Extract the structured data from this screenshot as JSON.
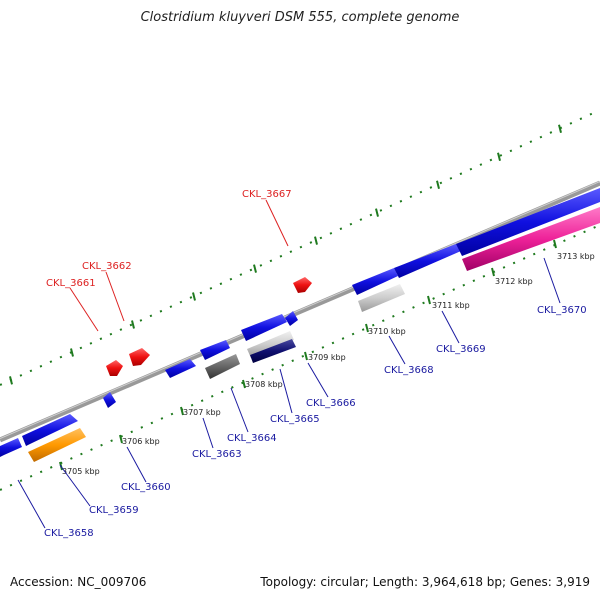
{
  "header": {
    "title": "Clostridium kluyveri DSM 555, complete genome"
  },
  "footer": {
    "accession": "Accession: NC_009706",
    "summary": "Topology: circular; Length: 3,964,618 bp; Genes: 3,919"
  },
  "colors": {
    "backbone": "#8a8a8a",
    "tick": "#1f7a1f",
    "forward_gene": "#1010e0",
    "reverse_gene": "#ee1111",
    "label_forward": "#1a1aa0",
    "label_reverse": "#dd2222"
  },
  "ticks": [
    {
      "label": "3705 kbp"
    },
    {
      "label": "3706 kbp"
    },
    {
      "label": "3707 kbp"
    },
    {
      "label": "3708 kbp"
    },
    {
      "label": "3709 kbp"
    },
    {
      "label": "3710 kbp"
    },
    {
      "label": "3711 kbp"
    },
    {
      "label": "3712 kbp"
    },
    {
      "label": "3713 kbp"
    }
  ],
  "gene_labels": [
    {
      "text": "CKL_3658",
      "strand": "forward"
    },
    {
      "text": "CKL_3659",
      "strand": "forward"
    },
    {
      "text": "CKL_3660",
      "strand": "forward"
    },
    {
      "text": "CKL_3663",
      "strand": "forward"
    },
    {
      "text": "CKL_3664",
      "strand": "forward"
    },
    {
      "text": "CKL_3665",
      "strand": "forward"
    },
    {
      "text": "CKL_3666",
      "strand": "forward"
    },
    {
      "text": "CKL_3668",
      "strand": "forward"
    },
    {
      "text": "CKL_3669",
      "strand": "forward"
    },
    {
      "text": "CKL_3670",
      "strand": "forward"
    },
    {
      "text": "CKL_3661",
      "strand": "reverse"
    },
    {
      "text": "CKL_3662",
      "strand": "reverse"
    },
    {
      "text": "CKL_3667",
      "strand": "reverse"
    }
  ]
}
